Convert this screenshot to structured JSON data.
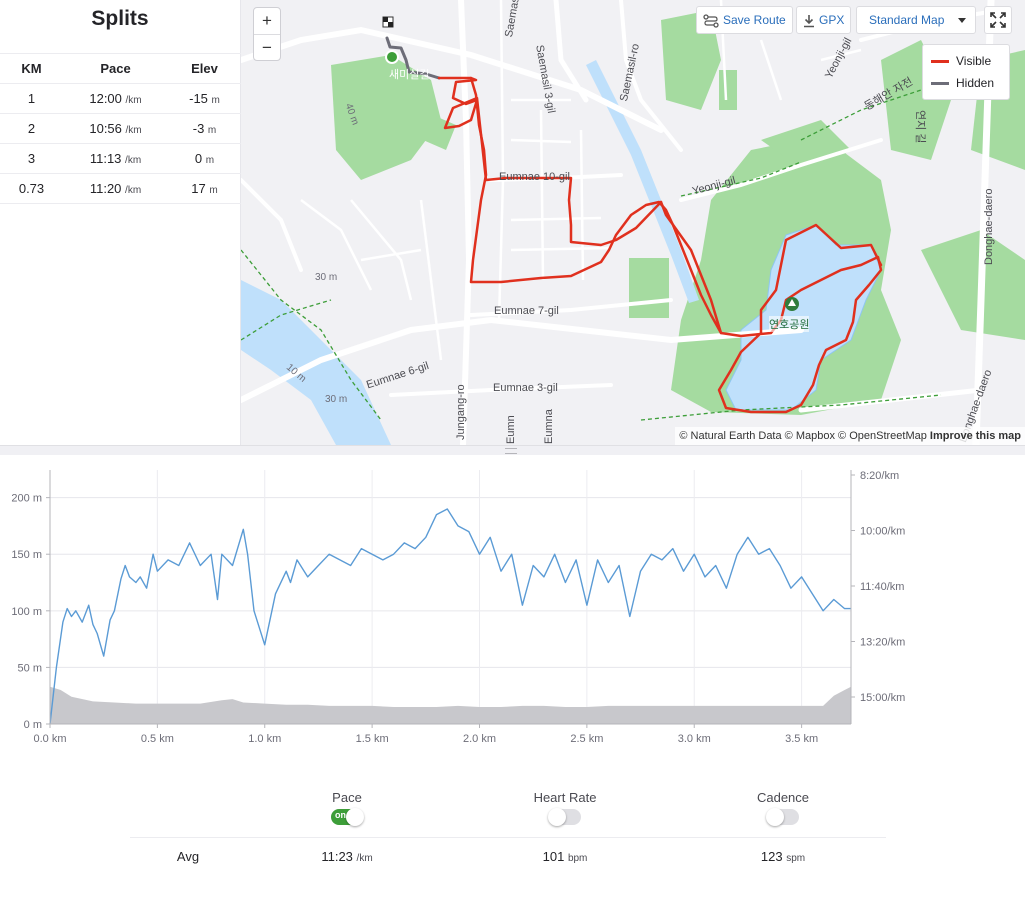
{
  "splits": {
    "title": "Splits",
    "headers": {
      "km": "KM",
      "pace": "Pace",
      "elev": "Elev"
    },
    "rows": [
      {
        "km": "1",
        "pace": "12:00",
        "pace_unit": "/km",
        "elev": "-15",
        "elev_unit": "m"
      },
      {
        "km": "2",
        "pace": "10:56",
        "pace_unit": "/km",
        "elev": "-3",
        "elev_unit": "m"
      },
      {
        "km": "3",
        "pace": "11:13",
        "pace_unit": "/km",
        "elev": "0",
        "elev_unit": "m"
      },
      {
        "km": "0.73",
        "pace": "11:20",
        "pace_unit": "/km",
        "elev": "17",
        "elev_unit": "m"
      }
    ]
  },
  "map": {
    "zoom_in": "+",
    "zoom_out": "−",
    "save_route": "Save Route",
    "gpx": "GPX",
    "map_style": "Standard Map",
    "legend": {
      "visible": "Visible",
      "hidden": "Hidden"
    },
    "colors": {
      "visible": "#e0301e",
      "hidden": "#6d6d78",
      "water": "#bfe0fb",
      "park": "#a5dba0",
      "road": "#ffffff"
    },
    "attribution": {
      "natural_earth": "© Natural Earth Data",
      "mapbox": "© Mapbox",
      "osm": "© OpenStreetMap",
      "improve": "Improve this map"
    },
    "labels": {
      "saemasil2": "Saemasil 2-gil",
      "saemasil3": "Saemasil 3-gil",
      "saemasilro": "Saemasil-ro",
      "eumnae10": "Eumnae 10-gil",
      "eumnae7": "Eumnae 7-gil",
      "eumnae6": "Eumnae 6-gil",
      "eumnae3": "Eumnae 3-gil",
      "yeonji": "Yeonji-gil",
      "yeonji2": "Yeonji-gil",
      "donghae": "Donghae-daero",
      "donghae2": "Donghae-daero",
      "jungang": "Jungang-ro",
      "eumnae_b": "Eumn",
      "eumnae_c": "Eumna",
      "park_name": "연호공원",
      "korean_road": "동해안 자전",
      "korean_gil": "연지 길",
      "korean_top": "새미실길",
      "m40a": "40 m",
      "m30a": "30 m",
      "m30b": "30 m",
      "m10": "10 m"
    },
    "icons": [
      "start-icon",
      "finish-flag-icon",
      "park-tree-icon",
      "fullscreen-icon",
      "route-icon",
      "download-icon",
      "caret-down-icon"
    ]
  },
  "chart": {
    "left_ticks": [
      "200 m",
      "150 m",
      "100 m",
      "50 m",
      "0 m"
    ],
    "right_ticks": [
      "8:20/km",
      "10:00/km",
      "11:40/km",
      "13:20/km",
      "15:00/km"
    ],
    "x_ticks": [
      "0.0 km",
      "0.5 km",
      "1.0 km",
      "1.5 km",
      "2.0 km",
      "2.5 km",
      "3.0 km",
      "3.5 km"
    ]
  },
  "chart_data": {
    "type": "area",
    "xlabel": "",
    "ylabel": "",
    "x_unit": "km",
    "xlim": [
      0,
      3.73
    ],
    "y_left_lim": [
      0,
      220
    ],
    "y_right_ticks": [
      "8:20/km",
      "10:00/km",
      "11:40/km",
      "13:20/km",
      "15:00/km"
    ],
    "grid": true,
    "series": [
      {
        "kind": "elevation-area",
        "color": "#c8c8cc",
        "x": [
          0,
          0.05,
          0.1,
          0.2,
          0.3,
          0.4,
          0.5,
          0.6,
          0.7,
          0.8,
          0.85,
          0.9,
          1.0,
          1.1,
          1.2,
          1.3,
          1.4,
          1.5,
          1.6,
          1.7,
          1.8,
          1.9,
          2.0,
          2.1,
          2.2,
          2.3,
          2.4,
          2.5,
          2.6,
          2.7,
          2.8,
          2.9,
          3.0,
          3.1,
          3.2,
          3.3,
          3.4,
          3.5,
          3.6,
          3.65,
          3.7,
          3.73
        ],
        "values": [
          33,
          30,
          24,
          20,
          19,
          18,
          18,
          18,
          18,
          21,
          22,
          19,
          18,
          17,
          17,
          16,
          16,
          16,
          15,
          15,
          15,
          16,
          15,
          15,
          16,
          16,
          15,
          15,
          16,
          16,
          16,
          16,
          16,
          16,
          16,
          16,
          16,
          16,
          16,
          25,
          30,
          33
        ]
      },
      {
        "kind": "pace-line",
        "color": "#5b9bd5",
        "x": [
          0,
          0.03,
          0.06,
          0.08,
          0.1,
          0.12,
          0.15,
          0.18,
          0.2,
          0.22,
          0.25,
          0.28,
          0.3,
          0.33,
          0.35,
          0.37,
          0.4,
          0.42,
          0.45,
          0.48,
          0.5,
          0.55,
          0.6,
          0.65,
          0.7,
          0.75,
          0.78,
          0.8,
          0.85,
          0.9,
          0.92,
          0.95,
          1.0,
          1.05,
          1.1,
          1.12,
          1.15,
          1.2,
          1.25,
          1.3,
          1.35,
          1.4,
          1.45,
          1.5,
          1.55,
          1.6,
          1.65,
          1.7,
          1.75,
          1.8,
          1.85,
          1.9,
          1.95,
          2.0,
          2.05,
          2.1,
          2.15,
          2.2,
          2.25,
          2.3,
          2.35,
          2.4,
          2.45,
          2.5,
          2.55,
          2.6,
          2.65,
          2.7,
          2.75,
          2.8,
          2.85,
          2.9,
          2.95,
          3.0,
          3.05,
          3.1,
          3.15,
          3.2,
          3.25,
          3.3,
          3.35,
          3.4,
          3.45,
          3.5,
          3.55,
          3.6,
          3.65,
          3.7,
          3.73
        ],
        "values": [
          0,
          50,
          90,
          102,
          95,
          100,
          90,
          105,
          88,
          80,
          60,
          92,
          100,
          128,
          140,
          130,
          125,
          130,
          120,
          150,
          135,
          145,
          140,
          160,
          140,
          150,
          110,
          150,
          140,
          172,
          150,
          100,
          70,
          115,
          135,
          125,
          145,
          130,
          140,
          150,
          145,
          140,
          155,
          150,
          145,
          150,
          160,
          155,
          165,
          185,
          190,
          175,
          170,
          150,
          165,
          135,
          150,
          105,
          140,
          130,
          150,
          125,
          145,
          105,
          145,
          125,
          140,
          95,
          135,
          150,
          145,
          155,
          135,
          150,
          130,
          140,
          120,
          150,
          165,
          150,
          155,
          140,
          120,
          130,
          115,
          100,
          110,
          102,
          102
        ]
      }
    ]
  },
  "stats": {
    "pace": {
      "label": "Pace",
      "toggle": "on",
      "toggle_text": "on",
      "avg": "11:23",
      "unit": "/km"
    },
    "heart_rate": {
      "label": "Heart Rate",
      "toggle": "off",
      "avg": "101",
      "unit": "bpm"
    },
    "cadence": {
      "label": "Cadence",
      "toggle": "off",
      "avg": "123",
      "unit": "spm"
    },
    "avg_label": "Avg"
  }
}
